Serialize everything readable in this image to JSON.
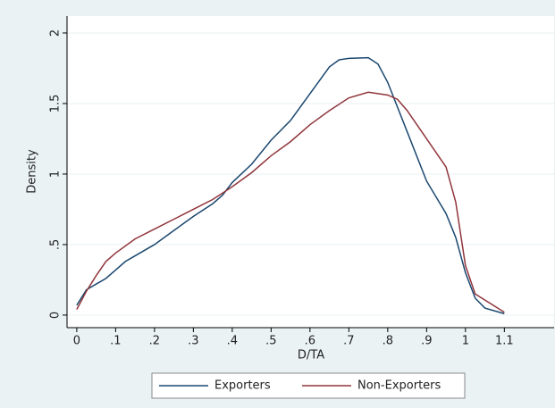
{
  "chart_data": {
    "type": "line",
    "xlabel": "D/TA",
    "ylabel": "Density",
    "xlim": [
      -0.025,
      1.228
    ],
    "ylim": [
      -0.089,
      2.12
    ],
    "xticks": [
      0,
      {
        "value": 0.1,
        "label": ".1"
      },
      {
        "value": 0.2,
        "label": ".2"
      },
      {
        "value": 0.3,
        "label": ".3"
      },
      {
        "value": 0.4,
        "label": ".4"
      },
      {
        "value": 0.5,
        "label": ".5"
      },
      {
        "value": 0.6,
        "label": ".6"
      },
      {
        "value": 0.7,
        "label": ".7"
      },
      {
        "value": 0.8,
        "label": ".8"
      },
      {
        "value": 0.9,
        "label": ".9"
      },
      1,
      1.1
    ],
    "yticks": [
      0,
      {
        "value": 0.5,
        "label": ".5"
      },
      1,
      1.5,
      2
    ],
    "grid": true,
    "legend": "bottom",
    "series": [
      {
        "name": "Exporters",
        "color": "#1a476f",
        "x": [
          0,
          0.025,
          0.05,
          0.075,
          0.1,
          0.125,
          0.15,
          0.2,
          0.25,
          0.3,
          0.35,
          0.375,
          0.4,
          0.45,
          0.5,
          0.55,
          0.6,
          0.65,
          0.675,
          0.7,
          0.75,
          0.775,
          0.8,
          0.85,
          0.9,
          0.95,
          0.975,
          1.0,
          1.025,
          1.05,
          1.1
        ],
        "values": [
          0.07,
          0.18,
          0.22,
          0.26,
          0.32,
          0.38,
          0.42,
          0.5,
          0.6,
          0.7,
          0.79,
          0.85,
          0.94,
          1.07,
          1.24,
          1.38,
          1.57,
          1.76,
          1.81,
          1.82,
          1.825,
          1.78,
          1.65,
          1.3,
          0.95,
          0.72,
          0.55,
          0.3,
          0.12,
          0.05,
          0.01
        ]
      },
      {
        "name": "Non-Exporters",
        "color": "#90353b",
        "x": [
          0,
          0.025,
          0.05,
          0.075,
          0.1,
          0.15,
          0.2,
          0.25,
          0.3,
          0.35,
          0.4,
          0.45,
          0.5,
          0.55,
          0.6,
          0.65,
          0.7,
          0.75,
          0.8,
          0.825,
          0.85,
          0.9,
          0.95,
          0.975,
          1.0,
          1.025,
          1.1
        ],
        "values": [
          0.04,
          0.17,
          0.28,
          0.38,
          0.44,
          0.54,
          0.61,
          0.68,
          0.75,
          0.82,
          0.91,
          1.01,
          1.13,
          1.23,
          1.35,
          1.45,
          1.54,
          1.58,
          1.56,
          1.53,
          1.45,
          1.25,
          1.05,
          0.8,
          0.35,
          0.15,
          0.02
        ]
      }
    ]
  }
}
